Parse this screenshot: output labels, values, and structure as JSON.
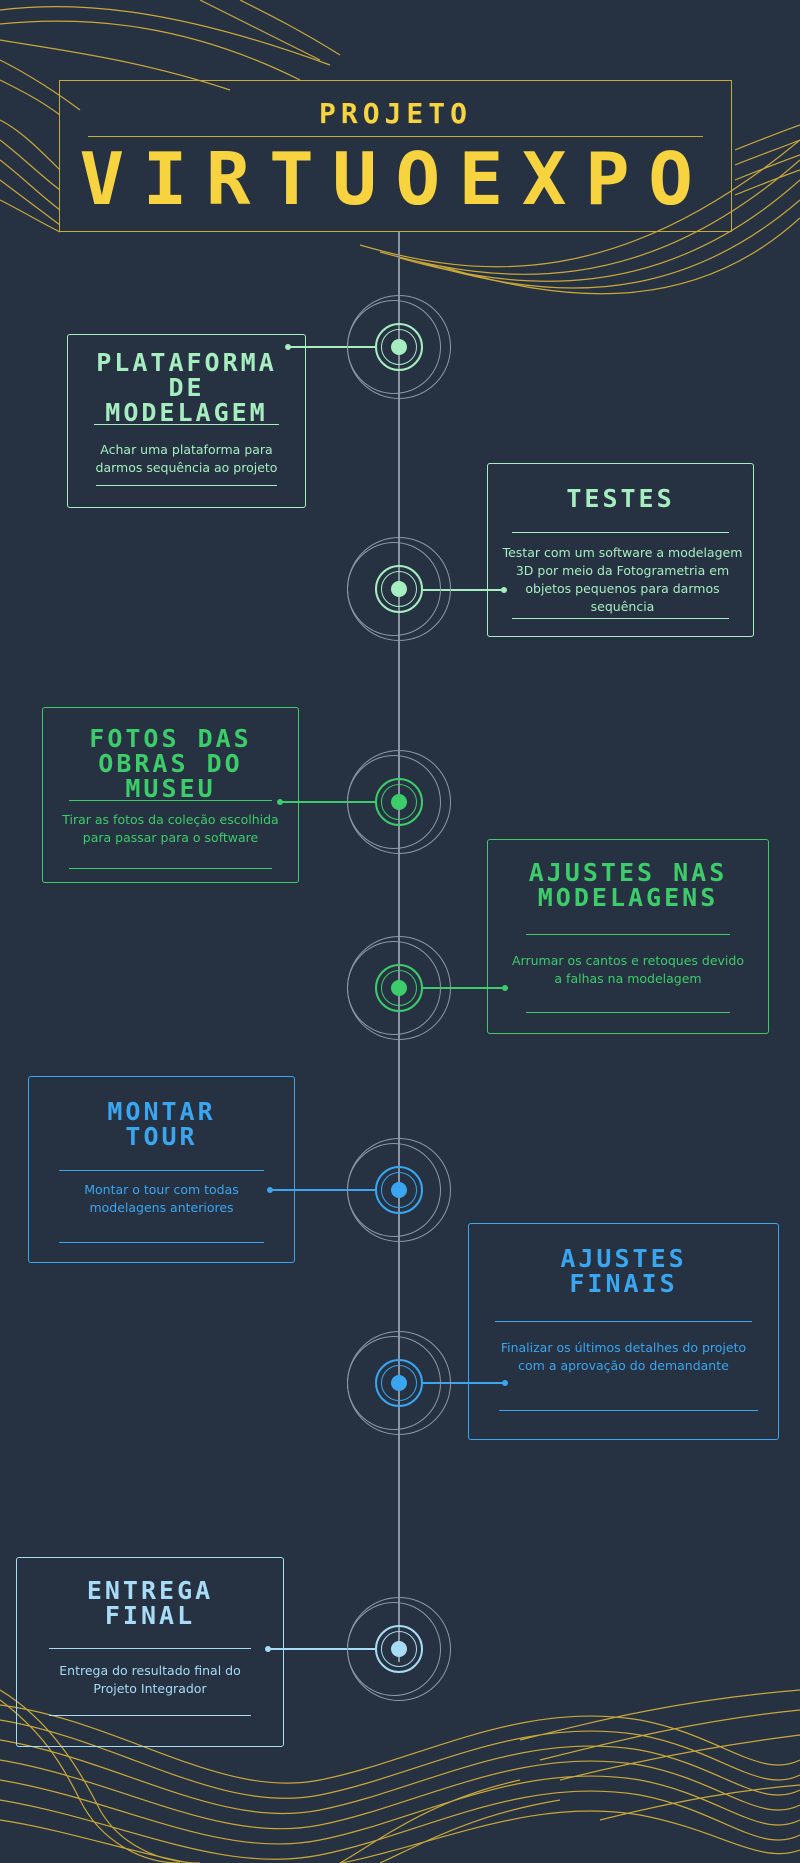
{
  "header": {
    "subtitle": "PROJETO",
    "title": "VIRTUOEXPO"
  },
  "colors": {
    "background": "#263142",
    "gold": "#f6d33f",
    "mint": "#a6eec0",
    "green": "#3dcc6a",
    "blue": "#3aa6f0",
    "lightblue": "#a8dcf6"
  },
  "steps": [
    {
      "title": "PLATAFORMA DE MODELAGEM",
      "text": "Achar uma plataforma para darmos sequência ao projeto"
    },
    {
      "title": "TESTES",
      "text": "Testar com um software a modelagem 3D por meio da Fotogrametria em objetos pequenos para darmos sequência"
    },
    {
      "title": "FOTOS DAS OBRAS DO MUSEU",
      "text": "Tirar as fotos da coleção escolhida para passar para o software"
    },
    {
      "title": "AJUSTES NAS MODELAGENS",
      "text": "Arrumar os cantos e retoques devido a falhas na modelagem"
    },
    {
      "title": "MONTAR TOUR",
      "text": "Montar o tour com todas modelagens anteriores"
    },
    {
      "title": "AJUSTES FINAIS",
      "text": "Finalizar os últimos detalhes do projeto com a aprovação do demandante"
    },
    {
      "title": "ENTREGA FINAL",
      "text": "Entrega do resultado final do Projeto Integrador"
    }
  ]
}
